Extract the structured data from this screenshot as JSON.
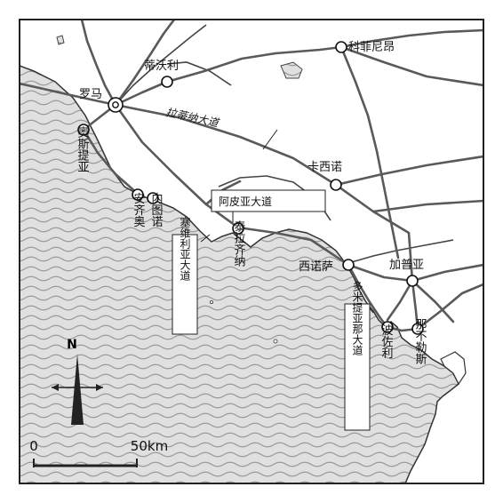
{
  "map": {
    "cities": {
      "rome": "罗马",
      "tivoli": "蒂沃利",
      "corfinium": "科菲尼昂",
      "ostia": "奥斯提亚",
      "antium": "安齐奥",
      "neptunium": "内图诺",
      "terracina": "泰拉齐纳",
      "casinum": "卡西诺",
      "sinuessa": "西诺萨",
      "capua": "加普亚",
      "puteoli": "波佐利",
      "naples": "那不勒斯"
    },
    "roads": {
      "via_latina": "拉蒂纳大道",
      "via_appia": "阿皮亚大道",
      "via_severiana": "塞维利亚大道",
      "via_domitiana": "多米提亚那大道"
    },
    "compass": {
      "north_label": "N"
    },
    "scale": {
      "start": "0",
      "end": "50km"
    },
    "colors": {
      "sea": "#d9d9d9",
      "land": "#ffffff",
      "road": "#555555",
      "river": "#444444",
      "border": "#222222"
    }
  }
}
